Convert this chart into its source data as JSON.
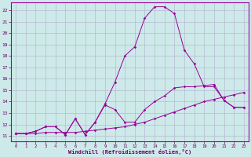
{
  "xlabel": "Windchill (Refroidissement éolien,°C)",
  "xlim": [
    -0.5,
    23.5
  ],
  "ylim": [
    10.5,
    22.7
  ],
  "yticks": [
    11,
    12,
    13,
    14,
    15,
    16,
    17,
    18,
    19,
    20,
    21,
    22
  ],
  "xticks": [
    0,
    1,
    2,
    3,
    4,
    5,
    6,
    7,
    8,
    9,
    10,
    11,
    12,
    13,
    14,
    15,
    16,
    17,
    18,
    19,
    20,
    21,
    22,
    23
  ],
  "bg_color": "#cde9e9",
  "line_color": "#990099",
  "grid_color": "#b0b0cc",
  "line1_x": [
    0,
    1,
    2,
    3,
    4,
    5,
    6,
    7,
    8,
    9,
    10,
    11,
    12,
    13,
    14,
    15,
    16,
    17,
    18,
    19,
    20,
    21,
    22,
    23
  ],
  "line1_y": [
    11.2,
    11.2,
    11.2,
    11.3,
    11.3,
    11.3,
    11.3,
    11.4,
    11.5,
    11.6,
    11.7,
    11.8,
    12.0,
    12.2,
    12.5,
    12.8,
    13.1,
    13.4,
    13.7,
    14.0,
    14.2,
    14.4,
    14.6,
    14.8
  ],
  "line2_x": [
    0,
    1,
    2,
    3,
    4,
    5,
    6,
    7,
    8,
    9,
    10,
    11,
    12,
    13,
    14,
    15,
    16,
    17,
    18,
    19,
    20,
    21,
    22,
    23
  ],
  "line2_y": [
    11.2,
    11.2,
    11.4,
    11.8,
    11.8,
    11.1,
    12.5,
    11.1,
    12.2,
    13.7,
    13.3,
    12.2,
    12.2,
    13.3,
    14.0,
    14.5,
    15.2,
    15.3,
    15.3,
    15.4,
    15.5,
    14.1,
    13.5,
    13.5
  ],
  "line3_x": [
    0,
    1,
    2,
    3,
    4,
    5,
    6,
    7,
    8,
    9,
    10,
    11,
    12,
    13,
    14,
    15,
    16,
    17,
    18,
    19,
    20,
    21,
    22,
    23
  ],
  "line3_y": [
    11.2,
    11.2,
    11.4,
    11.8,
    11.8,
    11.1,
    12.5,
    11.1,
    12.2,
    13.8,
    15.7,
    18.0,
    18.8,
    21.3,
    22.3,
    22.3,
    21.7,
    18.5,
    17.3,
    15.3,
    15.3,
    14.1,
    13.5,
    13.5
  ]
}
